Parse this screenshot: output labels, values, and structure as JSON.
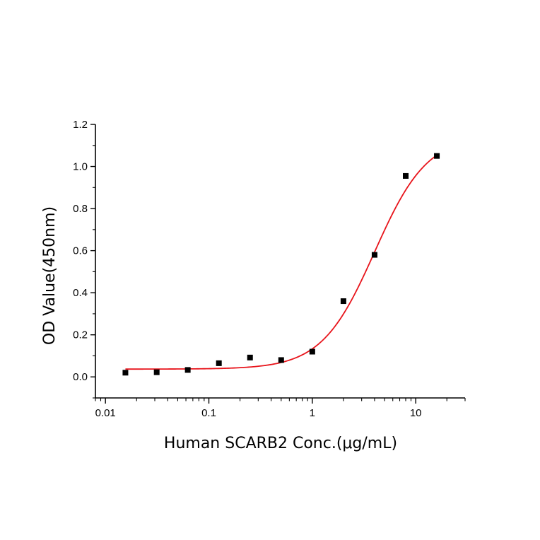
{
  "chart_data": {
    "type": "scatter",
    "title": "",
    "xlabel": "Human SCARB2 Conc.(μg/mL)",
    "ylabel": "OD Value(450nm)",
    "x_scale": "log",
    "xlim": [
      0.008,
      30
    ],
    "ylim": [
      -0.1,
      1.2
    ],
    "x_ticks": [
      {
        "value": 0.01,
        "label": "0.01"
      },
      {
        "value": 0.1,
        "label": "0.1"
      },
      {
        "value": 1,
        "label": "1"
      },
      {
        "value": 10,
        "label": "10"
      }
    ],
    "y_ticks": [
      {
        "value": 0.0,
        "label": "0.0"
      },
      {
        "value": 0.2,
        "label": "0.2"
      },
      {
        "value": 0.4,
        "label": "0.4"
      },
      {
        "value": 0.6,
        "label": "0.6"
      },
      {
        "value": 0.8,
        "label": "0.8"
      },
      {
        "value": 1.0,
        "label": "1.0"
      },
      {
        "value": 1.2,
        "label": "1.2"
      }
    ],
    "grid": false,
    "legend": "none",
    "series": [
      {
        "kind": "points",
        "marker": "square",
        "color": "#000000",
        "x": [
          0.0156,
          0.0313,
          0.0625,
          0.125,
          0.25,
          0.5,
          1,
          2,
          4,
          8,
          16
        ],
        "y": [
          0.02,
          0.022,
          0.033,
          0.065,
          0.092,
          0.08,
          0.12,
          0.36,
          0.58,
          0.955,
          1.05
        ]
      },
      {
        "kind": "fit-curve",
        "color": "#e8141b",
        "x_range": [
          0.0156,
          16
        ],
        "bottom": 0.037,
        "top": 1.15,
        "ec50": 4.0,
        "hill": 1.7
      }
    ]
  }
}
